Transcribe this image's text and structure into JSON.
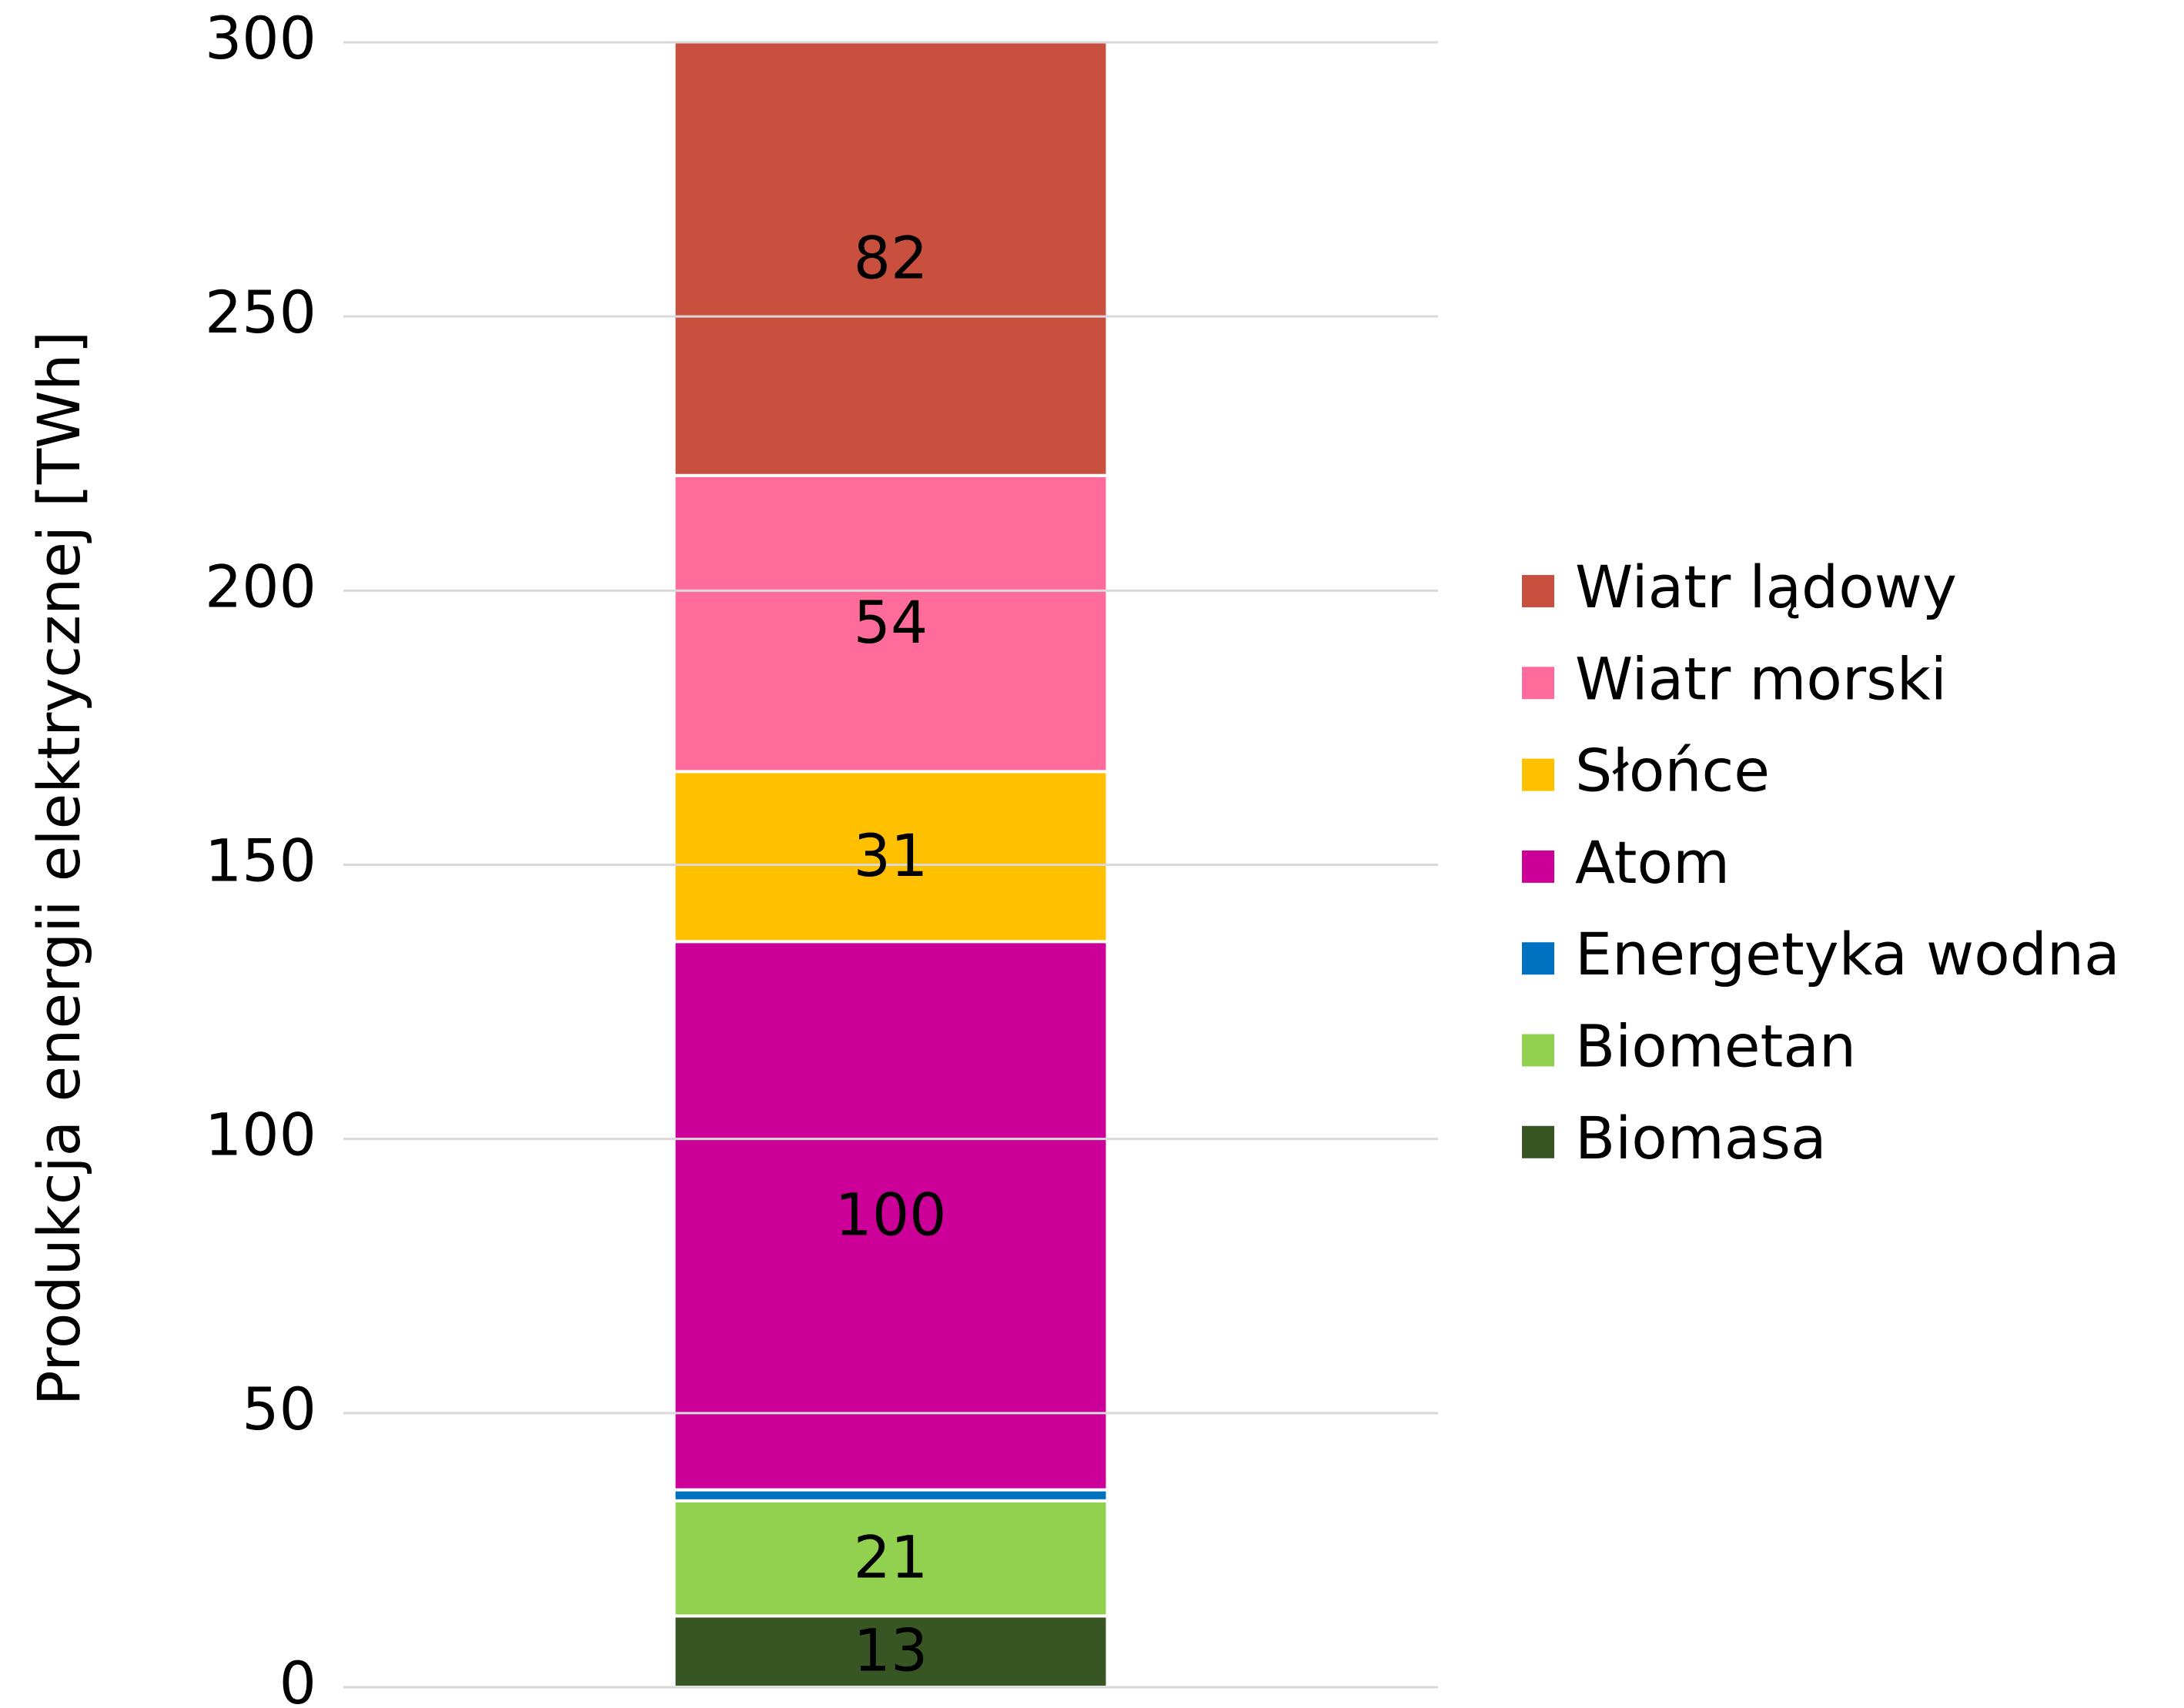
{
  "chart_data": {
    "type": "stacked_bar",
    "y_label": "Produkcja energii elektrycznej [TWh]",
    "categories": [
      null
    ],
    "series": [
      {
        "name": "Biomasa",
        "color": "#375623",
        "values": [
          13
        ]
      },
      {
        "name": "Biometan",
        "color": "#92d050",
        "values": [
          21
        ]
      },
      {
        "name": "Energetyka wodna",
        "color": "#0070c0",
        "values": [
          2
        ]
      },
      {
        "name": "Atom",
        "color": "#cc0099",
        "values": [
          100
        ]
      },
      {
        "name": "Słońce",
        "color": "#ffc000",
        "values": [
          31
        ]
      },
      {
        "name": "Wiatr morski",
        "color": "#ff6b9a",
        "values": [
          54
        ]
      },
      {
        "name": "Wiatr lądowy",
        "color": "#c9503e",
        "values": [
          82
        ]
      }
    ],
    "ylim": [
      0,
      300
    ],
    "yticks": [
      0,
      50,
      100,
      150,
      200,
      250,
      300
    ],
    "grid": true,
    "legend": "right"
  }
}
